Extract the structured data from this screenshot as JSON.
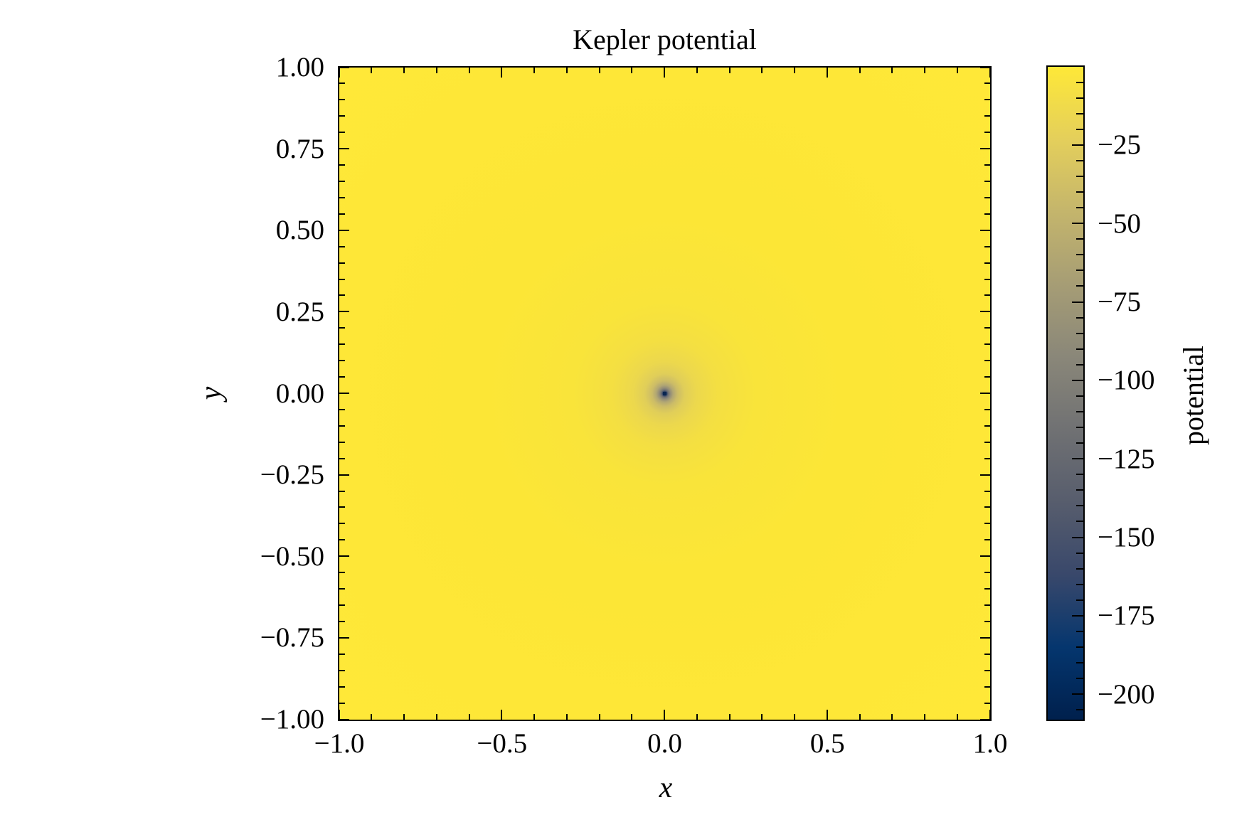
{
  "figure": {
    "title": "Kepler potential",
    "background_color": "#ffffff"
  },
  "chart_data": {
    "type": "heatmap",
    "title": "Kepler potential",
    "xlabel": "x",
    "ylabel": "y",
    "xlim": [
      -1,
      1
    ],
    "ylim": [
      -1,
      1
    ],
    "grid": false,
    "tick_style": "inward, all four sides, with minor ticks",
    "x_ticks": {
      "values": [
        -1,
        -0.5,
        0,
        0.5,
        1
      ],
      "labels": [
        "−1.0",
        "−0.5",
        "0.0",
        "0.5",
        "1.0"
      ],
      "minor_step": 0.1
    },
    "y_ticks": {
      "values": [
        1,
        0.75,
        0.5,
        0.25,
        0,
        -0.25,
        -0.5,
        -0.75,
        -1
      ],
      "labels": [
        "1.00",
        "0.75",
        "0.50",
        "0.25",
        "0.00",
        "−0.25",
        "−0.50",
        "−0.75",
        "−1.00"
      ],
      "minor_step": 0.05
    },
    "colorbar": {
      "label": "potential",
      "position": "right",
      "tick_values": [
        -25,
        -50,
        -75,
        -100,
        -125,
        -150,
        -175,
        -200
      ],
      "tick_labels": [
        "−25",
        "−50",
        "−75",
        "−100",
        "−125",
        "−150",
        "−175",
        "−200"
      ],
      "minor_step": 5,
      "vmax": 0,
      "vmin": -208,
      "colormap": "cividis",
      "colormap_colors": [
        "#00204d",
        "#05366e",
        "#39486b",
        "#575d6d",
        "#707173",
        "#8a8779",
        "#a69d75",
        "#c4b56c",
        "#e4cf5b",
        "#fee838"
      ]
    },
    "field": {
      "description": "Point-mass Kepler gravitational potential phi = -1/r, radially symmetric about the origin, singular (dark cividis-blue cell) at (0,0); nearly uniform yellow (phi ~ -1) away from center",
      "sample_x": [
        -1,
        -0.75,
        -0.5,
        -0.25,
        0,
        0.25,
        0.5,
        0.75,
        1
      ],
      "sample_y": [
        1,
        0.75,
        0.5,
        0.25,
        0,
        -0.25,
        -0.5,
        -0.75,
        -1
      ],
      "values": [
        [
          -0.71,
          -0.8,
          -0.89,
          -0.97,
          -1.0,
          -0.97,
          -0.89,
          -0.8,
          -0.71
        ],
        [
          -0.8,
          -0.94,
          -1.11,
          -1.26,
          -1.33,
          -1.26,
          -1.11,
          -0.94,
          -0.8
        ],
        [
          -0.89,
          -1.11,
          -1.41,
          -1.79,
          -2.0,
          -1.79,
          -1.41,
          -1.11,
          -0.89
        ],
        [
          -0.97,
          -1.26,
          -1.79,
          -2.83,
          -4.0,
          -2.83,
          -1.79,
          -1.26,
          -0.97
        ],
        [
          -1.0,
          -1.33,
          -2.0,
          -4.0,
          -208.0,
          -4.0,
          -2.0,
          -1.33,
          -1.0
        ],
        [
          -0.97,
          -1.26,
          -1.79,
          -2.83,
          -4.0,
          -2.83,
          -1.79,
          -1.26,
          -0.97
        ],
        [
          -0.89,
          -1.11,
          -1.41,
          -1.79,
          -2.0,
          -1.79,
          -1.41,
          -1.11,
          -0.89
        ],
        [
          -0.8,
          -0.94,
          -1.11,
          -1.26,
          -1.33,
          -1.26,
          -1.11,
          -0.94,
          -0.8
        ],
        [
          -0.71,
          -0.8,
          -0.89,
          -0.97,
          -1.0,
          -0.97,
          -0.89,
          -0.8,
          -0.71
        ]
      ]
    }
  }
}
